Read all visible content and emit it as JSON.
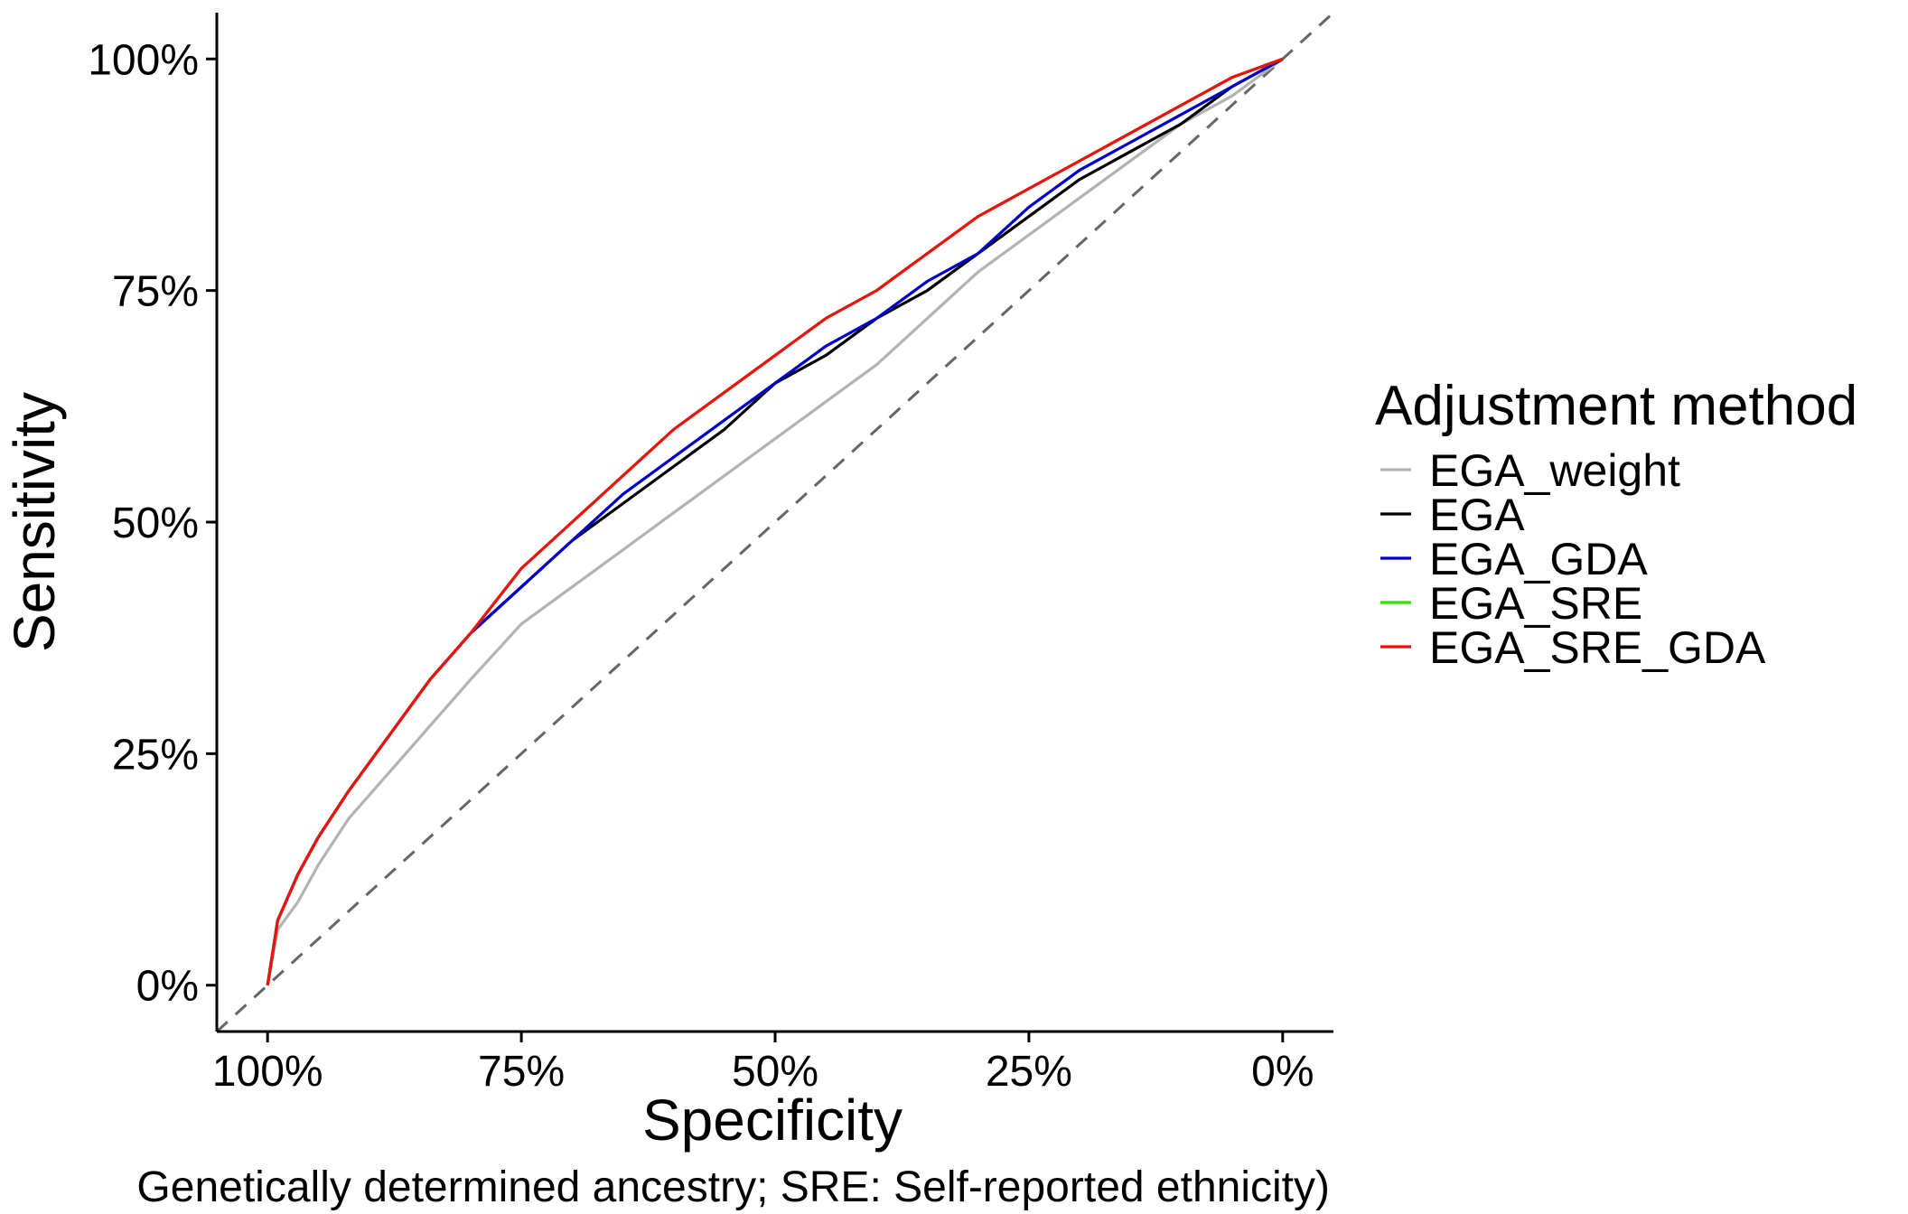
{
  "chart_data": {
    "type": "line",
    "title": "",
    "xlabel": "Specificity",
    "ylabel": "Sensitivity",
    "caption": "Genetically determined ancestry; SRE: Self-reported ethnicity)",
    "x_reversed": true,
    "xlim": [
      1.05,
      -0.05
    ],
    "ylim": [
      -0.05,
      1.05
    ],
    "x_ticks": [
      1.0,
      0.75,
      0.5,
      0.25,
      0.0
    ],
    "x_tick_labels": [
      "100%",
      "75%",
      "50%",
      "25%",
      "0%"
    ],
    "y_ticks": [
      0.0,
      0.25,
      0.5,
      0.75,
      1.0
    ],
    "y_tick_labels": [
      "0%",
      "25%",
      "50%",
      "75%",
      "100%"
    ],
    "grid": false,
    "reference_line": {
      "type": "diagonal",
      "style": "dashed",
      "color": "#666666"
    },
    "legend": {
      "title": "Adjustment method",
      "position": "right"
    },
    "series": [
      {
        "name": "EGA_weight",
        "color": "#b3b3b3",
        "points": [
          [
            1.0,
            0.0
          ],
          [
            0.99,
            0.06
          ],
          [
            0.97,
            0.09
          ],
          [
            0.95,
            0.13
          ],
          [
            0.92,
            0.18
          ],
          [
            0.88,
            0.23
          ],
          [
            0.84,
            0.28
          ],
          [
            0.8,
            0.33
          ],
          [
            0.75,
            0.39
          ],
          [
            0.7,
            0.43
          ],
          [
            0.65,
            0.47
          ],
          [
            0.6,
            0.51
          ],
          [
            0.55,
            0.55
          ],
          [
            0.5,
            0.59
          ],
          [
            0.45,
            0.63
          ],
          [
            0.4,
            0.67
          ],
          [
            0.35,
            0.72
          ],
          [
            0.3,
            0.77
          ],
          [
            0.25,
            0.81
          ],
          [
            0.2,
            0.85
          ],
          [
            0.15,
            0.89
          ],
          [
            0.1,
            0.93
          ],
          [
            0.05,
            0.96
          ],
          [
            0.0,
            1.0
          ]
        ]
      },
      {
        "name": "EGA",
        "color": "#000000",
        "points": [
          [
            1.0,
            0.0
          ],
          [
            0.99,
            0.07
          ],
          [
            0.97,
            0.12
          ],
          [
            0.95,
            0.16
          ],
          [
            0.92,
            0.21
          ],
          [
            0.88,
            0.27
          ],
          [
            0.84,
            0.33
          ],
          [
            0.8,
            0.38
          ],
          [
            0.75,
            0.43
          ],
          [
            0.7,
            0.48
          ],
          [
            0.65,
            0.52
          ],
          [
            0.6,
            0.56
          ],
          [
            0.55,
            0.6
          ],
          [
            0.5,
            0.65
          ],
          [
            0.45,
            0.68
          ],
          [
            0.4,
            0.72
          ],
          [
            0.35,
            0.75
          ],
          [
            0.3,
            0.79
          ],
          [
            0.25,
            0.83
          ],
          [
            0.2,
            0.87
          ],
          [
            0.15,
            0.9
          ],
          [
            0.1,
            0.93
          ],
          [
            0.05,
            0.97
          ],
          [
            0.0,
            1.0
          ]
        ]
      },
      {
        "name": "EGA_GDA",
        "color": "#0000cc",
        "points": [
          [
            1.0,
            0.0
          ],
          [
            0.99,
            0.07
          ],
          [
            0.97,
            0.12
          ],
          [
            0.95,
            0.16
          ],
          [
            0.92,
            0.21
          ],
          [
            0.88,
            0.27
          ],
          [
            0.84,
            0.33
          ],
          [
            0.8,
            0.38
          ],
          [
            0.75,
            0.43
          ],
          [
            0.7,
            0.48
          ],
          [
            0.65,
            0.53
          ],
          [
            0.6,
            0.57
          ],
          [
            0.55,
            0.61
          ],
          [
            0.5,
            0.65
          ],
          [
            0.45,
            0.69
          ],
          [
            0.4,
            0.72
          ],
          [
            0.35,
            0.76
          ],
          [
            0.3,
            0.79
          ],
          [
            0.25,
            0.84
          ],
          [
            0.2,
            0.88
          ],
          [
            0.15,
            0.91
          ],
          [
            0.1,
            0.94
          ],
          [
            0.05,
            0.97
          ],
          [
            0.0,
            1.0
          ]
        ]
      },
      {
        "name": "EGA_SRE",
        "color": "#33dd00",
        "points": [
          [
            1.0,
            0.0
          ],
          [
            0.99,
            0.07
          ],
          [
            0.97,
            0.12
          ],
          [
            0.95,
            0.16
          ],
          [
            0.92,
            0.21
          ],
          [
            0.88,
            0.27
          ],
          [
            0.84,
            0.33
          ],
          [
            0.8,
            0.38
          ],
          [
            0.75,
            0.45
          ],
          [
            0.7,
            0.5
          ],
          [
            0.65,
            0.55
          ],
          [
            0.6,
            0.6
          ],
          [
            0.55,
            0.64
          ],
          [
            0.5,
            0.68
          ],
          [
            0.45,
            0.72
          ],
          [
            0.4,
            0.75
          ],
          [
            0.35,
            0.79
          ],
          [
            0.3,
            0.83
          ],
          [
            0.25,
            0.86
          ],
          [
            0.2,
            0.89
          ],
          [
            0.15,
            0.92
          ],
          [
            0.1,
            0.95
          ],
          [
            0.05,
            0.98
          ],
          [
            0.0,
            1.0
          ]
        ]
      },
      {
        "name": "EGA_SRE_GDA",
        "color": "#ee1111",
        "points": [
          [
            1.0,
            0.0
          ],
          [
            0.99,
            0.07
          ],
          [
            0.97,
            0.12
          ],
          [
            0.95,
            0.16
          ],
          [
            0.92,
            0.21
          ],
          [
            0.88,
            0.27
          ],
          [
            0.84,
            0.33
          ],
          [
            0.8,
            0.38
          ],
          [
            0.75,
            0.45
          ],
          [
            0.7,
            0.5
          ],
          [
            0.65,
            0.55
          ],
          [
            0.6,
            0.6
          ],
          [
            0.55,
            0.64
          ],
          [
            0.5,
            0.68
          ],
          [
            0.45,
            0.72
          ],
          [
            0.4,
            0.75
          ],
          [
            0.35,
            0.79
          ],
          [
            0.3,
            0.83
          ],
          [
            0.25,
            0.86
          ],
          [
            0.2,
            0.89
          ],
          [
            0.15,
            0.92
          ],
          [
            0.1,
            0.95
          ],
          [
            0.05,
            0.98
          ],
          [
            0.0,
            1.0
          ]
        ]
      }
    ]
  }
}
